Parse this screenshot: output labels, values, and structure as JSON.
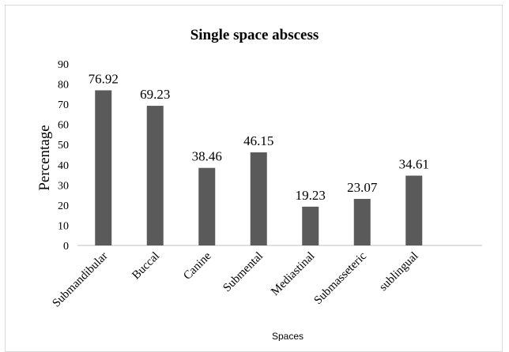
{
  "chart_data": {
    "type": "bar",
    "title": "Single space abscess",
    "xlabel": "Spaces",
    "ylabel": "Percentage",
    "ylim": [
      0,
      90
    ],
    "yticks": [
      "0",
      "10",
      "20",
      "30",
      "40",
      "50",
      "60",
      "70",
      "80",
      "90"
    ],
    "categories": [
      "Submandibular",
      "Buccal",
      "Canine",
      "Submental",
      "Mediastinal",
      "Submasseteric",
      "sublingual"
    ],
    "values": [
      76.92,
      69.23,
      38.46,
      46.15,
      19.23,
      23.07,
      34.61
    ],
    "data_labels": [
      "76.92",
      "69.23",
      "38.46",
      "46.15",
      "19.23",
      "23.07",
      "34.61"
    ],
    "bar_color": "#5a5a5a",
    "grid": false,
    "legend": "none"
  }
}
